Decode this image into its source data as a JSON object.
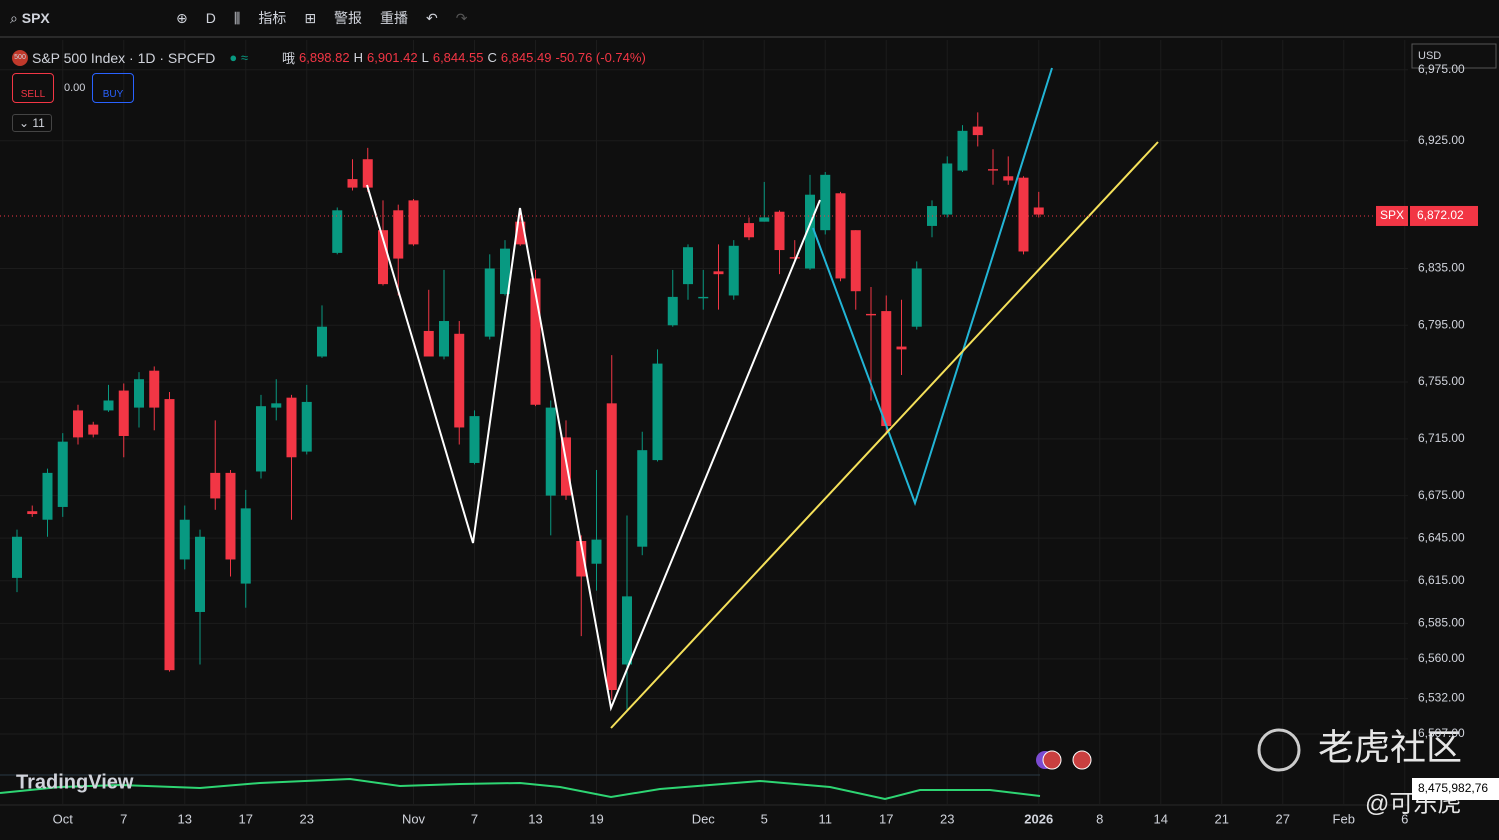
{
  "toolbar": {
    "symbol": "SPX",
    "interval": "D",
    "indicators": "指标",
    "alerts": "警报",
    "replay": "重播"
  },
  "legend": {
    "title": "S&P 500 Index · 1D · SPCFD",
    "o_label": "哦",
    "o": "6,898.82",
    "h_label": "H",
    "h": "6,901.42",
    "l_label": "L",
    "l": "6,844.55",
    "c_label": "C",
    "c": "6,845.49",
    "change": "-50.76 (-0.74%)",
    "sell": "SELL",
    "spread": "0.00",
    "buy": "BUY",
    "count": "11"
  },
  "currency": "USD",
  "chart_data": {
    "type": "candlestick",
    "open": [
      6617,
      6664,
      6658,
      6667,
      6735,
      6725,
      6735,
      6749,
      6737,
      6763,
      6743,
      6630,
      6593,
      6691,
      6691,
      6613,
      6692,
      6737,
      6744,
      6706,
      6773,
      6846,
      6898,
      6912,
      6862,
      6876,
      6883,
      6791,
      6773,
      6789,
      6698,
      6787,
      6817,
      6868,
      6828,
      6675,
      6716,
      6643,
      6627,
      6740,
      6556,
      6639,
      6700,
      6795,
      6824,
      6814,
      6833,
      6816,
      6867,
      6868,
      6875,
      6843,
      6835,
      6862,
      6888,
      6862,
      6803,
      6805,
      6780,
      6794,
      6865,
      6873,
      6904,
      6935,
      6905,
      6900,
      6899,
      6878
    ],
    "high": [
      6651,
      6668,
      6694,
      6719,
      6739,
      6727,
      6753,
      6754,
      6762,
      6766,
      6748,
      6668,
      6651,
      6728,
      6693,
      6679,
      6746,
      6757,
      6746,
      6753,
      6809,
      6878,
      6912,
      6920,
      6883,
      6880,
      6884,
      6820,
      6834,
      6798,
      6735,
      6845,
      6855,
      6873,
      6834,
      6742,
      6728,
      6647,
      6693,
      6774,
      6661,
      6720,
      6778,
      6834,
      6852,
      6834,
      6852,
      6855,
      6871,
      6896,
      6876,
      6855,
      6901,
      6903,
      6889,
      6862,
      6822,
      6816,
      6813,
      6840,
      6883,
      6914,
      6936,
      6945,
      6919,
      6914,
      6900,
      6889
    ],
    "low": [
      6607,
      6660,
      6646,
      6660,
      6711,
      6716,
      6734,
      6702,
      6723,
      6721,
      6551,
      6623,
      6556,
      6665,
      6618,
      6596,
      6687,
      6728,
      6658,
      6704,
      6772,
      6845,
      6890,
      6889,
      6823,
      6816,
      6851,
      6773,
      6771,
      6711,
      6697,
      6785,
      6816,
      6851,
      6738,
      6647,
      6672,
      6576,
      6608,
      6531,
      6524,
      6633,
      6699,
      6794,
      6813,
      6806,
      6806,
      6813,
      6855,
      6868,
      6831,
      6840,
      6834,
      6859,
      6826,
      6806,
      6742,
      6718,
      6760,
      6792,
      6857,
      6871,
      6903,
      6921,
      6894,
      6894,
      6845,
      6871
    ],
    "close": [
      6646,
      6662,
      6691,
      6713,
      6716,
      6718,
      6742,
      6717,
      6757,
      6737,
      6552,
      6658,
      6646,
      6673,
      6630,
      6666,
      6738,
      6740,
      6702,
      6741,
      6794,
      6876,
      6892,
      6892,
      6824,
      6842,
      6852,
      6773,
      6798,
      6723,
      6731,
      6835,
      6849,
      6852,
      6739,
      6737,
      6675,
      6618,
      6644,
      6538,
      6604,
      6707,
      6768,
      6815,
      6850,
      6815,
      6831,
      6851,
      6857,
      6871,
      6848,
      6842,
      6887,
      6901,
      6828,
      6819,
      6802,
      6724,
      6778,
      6835,
      6879,
      6909,
      6932,
      6929,
      6904,
      6897,
      6847,
      6873
    ],
    "up_color": "#089981",
    "down_color": "#f23645",
    "ylim": [
      6457,
      6996
    ],
    "yticks": [
      {
        "value": 6975,
        "label": "6,975.00"
      },
      {
        "value": 6925,
        "label": "6,925.00"
      },
      {
        "value": 6835,
        "label": "6,835.00"
      },
      {
        "value": 6795,
        "label": "6,795.00"
      },
      {
        "value": 6755,
        "label": "6,755.00"
      },
      {
        "value": 6715,
        "label": "6,715.00"
      },
      {
        "value": 6675,
        "label": "6,675.00"
      },
      {
        "value": 6645,
        "label": "6,645.00"
      },
      {
        "value": 6615,
        "label": "6,615.00"
      },
      {
        "value": 6585,
        "label": "6,585.00"
      },
      {
        "value": 6560,
        "label": "6,560.00"
      },
      {
        "value": 6532,
        "label": "6,532.00"
      },
      {
        "value": 6507,
        "label": "6,507.00"
      }
    ],
    "last_price": {
      "value": 6872.02,
      "label": "6,872.02",
      "symbol": "SPX"
    },
    "time_labels": [
      "Oct",
      "7",
      "13",
      "17",
      "23",
      "Nov",
      "7",
      "13",
      "19",
      "Dec",
      "5",
      "11",
      "17",
      "23",
      "2026",
      "8",
      "14",
      "21",
      "27",
      "Feb",
      "6"
    ],
    "volume_label": "8,475,982,76"
  },
  "branding": "TradingView",
  "watermark": {
    "title": "老虎社区",
    "user": "@可乐虎"
  }
}
